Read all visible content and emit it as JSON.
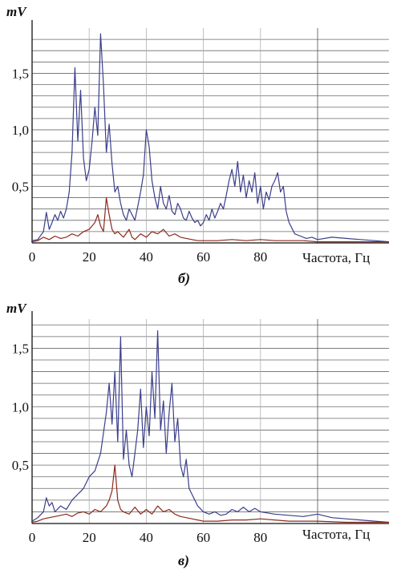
{
  "chart_data": [
    {
      "type": "line",
      "caption": "б)",
      "ylabel": "mV",
      "xlabel": "Частота, Гц",
      "xlim": [
        0,
        125
      ],
      "ylim": [
        0,
        1.9
      ],
      "x_ticks": [
        0,
        20,
        40,
        60,
        80
      ],
      "x_tick_labels": [
        "0",
        "20",
        "40",
        "60",
        "80"
      ],
      "y_ticks": [
        0.5,
        1.0,
        1.5
      ],
      "y_tick_labels": [
        "0,5",
        "1,0",
        "1,5"
      ],
      "grid": true,
      "series": [
        {
          "color": "#3b3f8c",
          "x": [
            0,
            2,
            4,
            5,
            6,
            7,
            8,
            9,
            10,
            11,
            12,
            13,
            14,
            15,
            16,
            17,
            18,
            19,
            20,
            21,
            22,
            23,
            24,
            25,
            26,
            27,
            28,
            29,
            30,
            31,
            32,
            33,
            34,
            35,
            36,
            37,
            38,
            39,
            40,
            41,
            42,
            43,
            44,
            45,
            46,
            47,
            48,
            49,
            50,
            51,
            52,
            53,
            54,
            55,
            56,
            57,
            58,
            59,
            60,
            61,
            62,
            63,
            64,
            65,
            66,
            67,
            68,
            69,
            70,
            71,
            72,
            73,
            74,
            75,
            76,
            77,
            78,
            79,
            80,
            81,
            82,
            83,
            84,
            85,
            86,
            87,
            88,
            89,
            90,
            92,
            94,
            96,
            98,
            100,
            105,
            110,
            115,
            120,
            125
          ],
          "y": [
            0.02,
            0.03,
            0.1,
            0.27,
            0.12,
            0.18,
            0.25,
            0.2,
            0.28,
            0.22,
            0.3,
            0.45,
            0.8,
            1.55,
            0.9,
            1.35,
            0.75,
            0.55,
            0.65,
            0.9,
            1.2,
            0.95,
            1.85,
            1.4,
            0.8,
            1.05,
            0.7,
            0.45,
            0.5,
            0.35,
            0.25,
            0.2,
            0.3,
            0.25,
            0.2,
            0.32,
            0.45,
            0.6,
            1.0,
            0.85,
            0.55,
            0.4,
            0.3,
            0.5,
            0.35,
            0.3,
            0.42,
            0.28,
            0.25,
            0.35,
            0.3,
            0.22,
            0.2,
            0.28,
            0.22,
            0.18,
            0.2,
            0.15,
            0.18,
            0.25,
            0.2,
            0.3,
            0.22,
            0.28,
            0.35,
            0.3,
            0.42,
            0.55,
            0.65,
            0.5,
            0.72,
            0.45,
            0.6,
            0.4,
            0.55,
            0.45,
            0.62,
            0.35,
            0.5,
            0.3,
            0.45,
            0.38,
            0.5,
            0.55,
            0.62,
            0.45,
            0.5,
            0.28,
            0.18,
            0.08,
            0.06,
            0.04,
            0.05,
            0.03,
            0.05,
            0.04,
            0.03,
            0.02,
            0.01
          ]
        },
        {
          "color": "#8b2a1c",
          "x": [
            0,
            2,
            4,
            6,
            8,
            10,
            12,
            14,
            16,
            18,
            20,
            22,
            23,
            24,
            25,
            26,
            27,
            28,
            29,
            30,
            32,
            34,
            35,
            36,
            38,
            40,
            42,
            44,
            46,
            48,
            50,
            52,
            54,
            56,
            58,
            60,
            65,
            70,
            75,
            80,
            85,
            90,
            95,
            100,
            110,
            120,
            125
          ],
          "y": [
            0.01,
            0.02,
            0.05,
            0.03,
            0.06,
            0.04,
            0.05,
            0.08,
            0.06,
            0.1,
            0.12,
            0.18,
            0.25,
            0.15,
            0.1,
            0.4,
            0.25,
            0.12,
            0.08,
            0.1,
            0.05,
            0.12,
            0.05,
            0.03,
            0.08,
            0.05,
            0.1,
            0.08,
            0.12,
            0.06,
            0.08,
            0.05,
            0.04,
            0.03,
            0.02,
            0.02,
            0.02,
            0.03,
            0.02,
            0.03,
            0.02,
            0.02,
            0.02,
            0.01,
            0.01,
            0.01,
            0.01
          ]
        }
      ]
    },
    {
      "type": "line",
      "caption": "в)",
      "ylabel": "mV",
      "xlabel": "Частота, Гц",
      "xlim": [
        0,
        125
      ],
      "ylim": [
        0,
        1.75
      ],
      "x_ticks": [
        0,
        20,
        40,
        60,
        80
      ],
      "x_tick_labels": [
        "0",
        "20",
        "40",
        "60",
        "80"
      ],
      "y_ticks": [
        0.5,
        1.0,
        1.5
      ],
      "y_tick_labels": [
        "0,5",
        "1,0",
        "1,5"
      ],
      "grid": true,
      "series": [
        {
          "color": "#3b3f8c",
          "x": [
            0,
            2,
            4,
            5,
            6,
            7,
            8,
            10,
            12,
            14,
            16,
            18,
            20,
            22,
            24,
            26,
            27,
            28,
            29,
            30,
            31,
            32,
            33,
            34,
            35,
            36,
            37,
            38,
            39,
            40,
            41,
            42,
            43,
            44,
            45,
            46,
            47,
            48,
            49,
            50,
            51,
            52,
            53,
            54,
            55,
            56,
            58,
            60,
            62,
            64,
            66,
            68,
            70,
            72,
            74,
            76,
            78,
            80,
            85,
            90,
            95,
            100,
            105,
            110,
            115,
            120,
            125
          ],
          "y": [
            0.02,
            0.05,
            0.1,
            0.22,
            0.15,
            0.18,
            0.1,
            0.15,
            0.12,
            0.2,
            0.25,
            0.3,
            0.4,
            0.45,
            0.6,
            0.95,
            1.2,
            0.85,
            1.3,
            0.7,
            1.6,
            0.55,
            0.8,
            0.5,
            0.4,
            0.6,
            0.8,
            1.15,
            0.65,
            1.0,
            0.75,
            1.3,
            0.9,
            1.65,
            0.8,
            1.05,
            0.6,
            0.95,
            1.2,
            0.7,
            0.9,
            0.5,
            0.4,
            0.55,
            0.3,
            0.25,
            0.15,
            0.1,
            0.08,
            0.1,
            0.07,
            0.08,
            0.12,
            0.1,
            0.14,
            0.1,
            0.13,
            0.1,
            0.08,
            0.07,
            0.06,
            0.08,
            0.05,
            0.04,
            0.03,
            0.02,
            0.01
          ]
        },
        {
          "color": "#8b2a1c",
          "x": [
            0,
            2,
            4,
            6,
            8,
            10,
            12,
            14,
            16,
            18,
            20,
            22,
            24,
            26,
            27,
            28,
            29,
            30,
            31,
            32,
            34,
            36,
            38,
            40,
            42,
            44,
            46,
            48,
            50,
            52,
            54,
            56,
            58,
            60,
            65,
            70,
            75,
            80,
            85,
            90,
            95,
            100,
            110,
            120,
            125
          ],
          "y": [
            0.01,
            0.02,
            0.04,
            0.05,
            0.06,
            0.07,
            0.08,
            0.06,
            0.09,
            0.1,
            0.08,
            0.12,
            0.1,
            0.15,
            0.2,
            0.28,
            0.5,
            0.2,
            0.12,
            0.1,
            0.08,
            0.14,
            0.08,
            0.12,
            0.08,
            0.15,
            0.1,
            0.12,
            0.08,
            0.06,
            0.05,
            0.04,
            0.03,
            0.02,
            0.02,
            0.03,
            0.03,
            0.04,
            0.03,
            0.02,
            0.02,
            0.02,
            0.01,
            0.01,
            0.01
          ]
        }
      ]
    }
  ]
}
